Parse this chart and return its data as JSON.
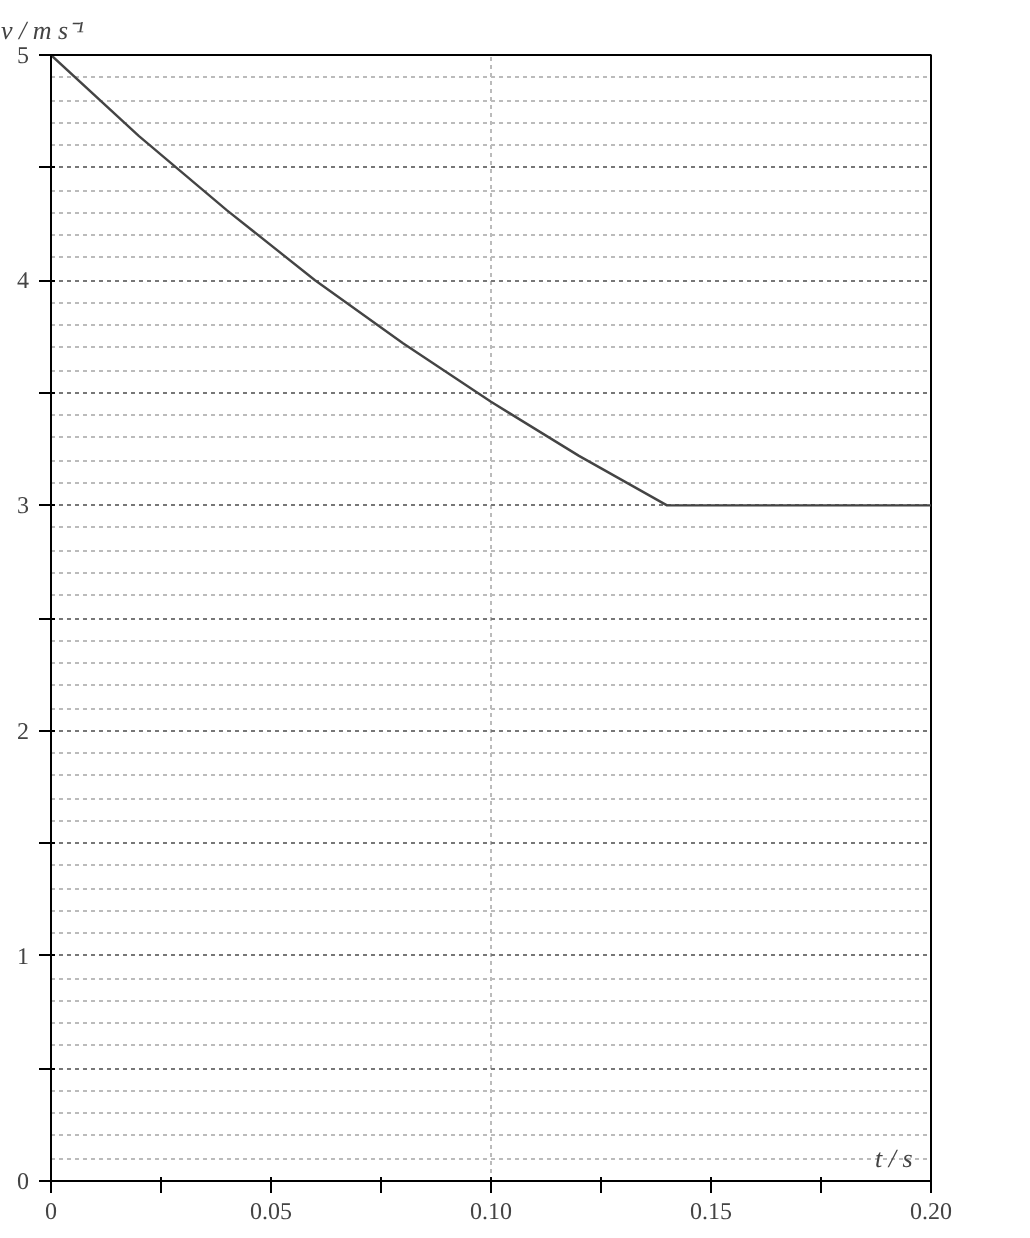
{
  "chart_data": {
    "type": "line",
    "xlabel": "t / s",
    "ylabel": "v / m s⁻¹",
    "x": [
      0,
      0.02,
      0.04,
      0.06,
      0.08,
      0.1,
      0.12,
      0.14,
      0.2
    ],
    "series": [
      {
        "color": "#444444",
        "values": [
          5,
          4.64,
          4.31,
          4.0,
          3.72,
          3.46,
          3.22,
          3.0,
          3.0
        ]
      }
    ],
    "xlim": [
      0,
      0.2
    ],
    "ylim": [
      0,
      5
    ],
    "xticks": [
      0,
      {
        "value": 0.025,
        "label": null
      },
      0.05,
      {
        "value": 0.075,
        "label": null
      },
      "0.10",
      {
        "value": 0.125,
        "label": null
      },
      0.15,
      {
        "value": 0.175,
        "label": null
      },
      "0.20"
    ],
    "yticks": [
      0,
      {
        "value": 0.5,
        "label": null
      },
      1,
      {
        "value": 1.5,
        "label": null
      },
      2,
      {
        "value": 2.5,
        "label": null
      },
      3,
      {
        "value": 3.5,
        "label": null
      },
      4,
      {
        "value": 4.5,
        "label": null
      },
      5
    ],
    "grid": true,
    "marker": "none",
    "line_style": "solid"
  }
}
